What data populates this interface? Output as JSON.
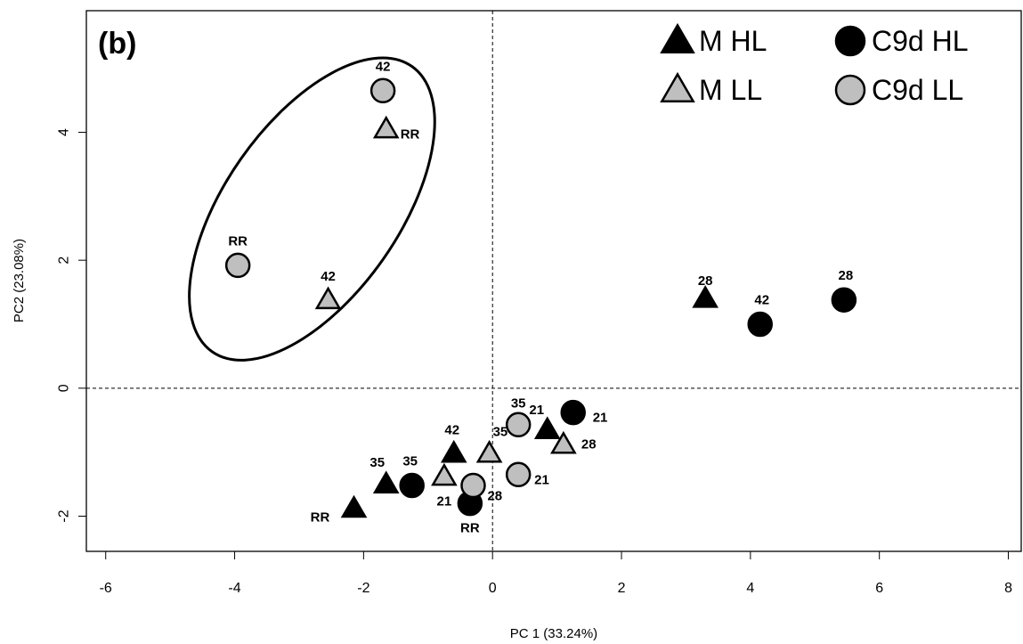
{
  "chart_data": {
    "type": "scatter",
    "panel_label": "(b)",
    "xlabel": "PC 1 (33.24%)",
    "ylabel": "PC2 (23.08%)",
    "xlim": [
      -6.3,
      8.2
    ],
    "ylim": [
      -2.55,
      5.9
    ],
    "x_ticks": [
      -6,
      -4,
      -2,
      0,
      2,
      4,
      6,
      8
    ],
    "y_ticks": [
      -2,
      0,
      2,
      4
    ],
    "reference_lines": {
      "x": 0,
      "y": 0,
      "style": "dashed"
    },
    "grid": false,
    "legend_position": "top-right",
    "colors": {
      "HL": "#000000",
      "LL": "#bfbfbf",
      "outline": "#000000"
    },
    "series": [
      {
        "name": "M HL",
        "marker": "triangle",
        "fill": "#000000",
        "points": [
          {
            "x": 3.3,
            "y": 1.4,
            "label": "28"
          },
          {
            "x": 0.85,
            "y": -0.65,
            "label": "21"
          },
          {
            "x": -0.6,
            "y": -1.02,
            "label": "42"
          },
          {
            "x": -1.65,
            "y": -1.5,
            "label": "35"
          },
          {
            "x": -2.15,
            "y": -1.88,
            "label": "RR"
          }
        ]
      },
      {
        "name": "M LL",
        "marker": "triangle",
        "fill": "#bfbfbf",
        "points": [
          {
            "x": -1.65,
            "y": 4.05,
            "label": "RR"
          },
          {
            "x": -2.55,
            "y": 1.38,
            "label": "42"
          },
          {
            "x": -0.05,
            "y": -1.02,
            "label": "35"
          },
          {
            "x": 1.1,
            "y": -0.88,
            "label": "28"
          },
          {
            "x": -0.75,
            "y": -1.38,
            "label": "21"
          }
        ]
      },
      {
        "name": "C9d HL",
        "marker": "circle",
        "fill": "#000000",
        "points": [
          {
            "x": 5.45,
            "y": 1.38,
            "label": "28"
          },
          {
            "x": 4.15,
            "y": 1.0,
            "label": "42"
          },
          {
            "x": 1.25,
            "y": -0.38,
            "label": "21"
          },
          {
            "x": -1.25,
            "y": -1.52,
            "label": "35"
          },
          {
            "x": -0.35,
            "y": -1.8,
            "label": "RR"
          }
        ]
      },
      {
        "name": "C9d LL",
        "marker": "circle",
        "fill": "#bfbfbf",
        "points": [
          {
            "x": -1.7,
            "y": 4.65,
            "label": "42"
          },
          {
            "x": -3.95,
            "y": 1.92,
            "label": "RR"
          },
          {
            "x": 0.4,
            "y": -0.57,
            "label": "35"
          },
          {
            "x": 0.4,
            "y": -1.35,
            "label": "21"
          },
          {
            "x": -0.3,
            "y": -1.52,
            "label": "28"
          }
        ]
      }
    ],
    "annotations": [
      {
        "type": "ellipse",
        "center": [
          -2.8,
          2.8
        ],
        "rx": 1.35,
        "ry": 2.7,
        "rotation_deg": -35
      }
    ]
  }
}
